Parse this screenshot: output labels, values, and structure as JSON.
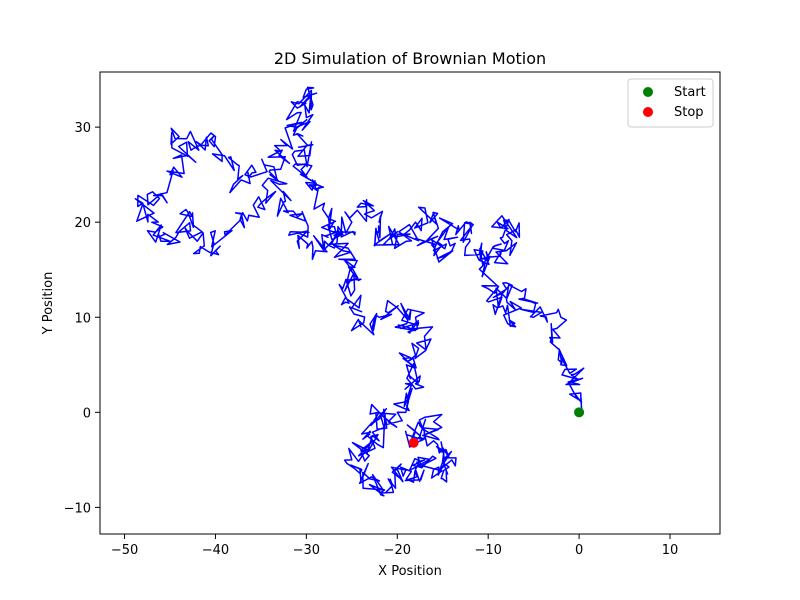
{
  "chart_data": {
    "type": "line",
    "title": "2D Simulation of Brownian Motion",
    "xlabel": "X Position",
    "ylabel": "Y Position",
    "xlim": [
      -52.7,
      15.5
    ],
    "ylim": [
      -12.8,
      35.8
    ],
    "xticks": [
      -50,
      -40,
      -30,
      -20,
      -10,
      0,
      10
    ],
    "yticks": [
      -10,
      0,
      10,
      20,
      30
    ],
    "xtick_labels": [
      "−50",
      "−40",
      "−30",
      "−20",
      "−10",
      "0",
      "10"
    ],
    "ytick_labels": [
      "−10",
      "0",
      "10",
      "20",
      "30"
    ],
    "grid": false,
    "legend_position": "top-right",
    "series": [
      {
        "type": "line",
        "color": "#0000ff",
        "waypoints": [
          [
            0,
            0
          ],
          [
            -0.5,
            2
          ],
          [
            -0.5,
            4
          ],
          [
            -2,
            5
          ],
          [
            -3,
            8
          ],
          [
            -2,
            10
          ],
          [
            -5,
            10
          ],
          [
            -6,
            12
          ],
          [
            -8,
            13
          ],
          [
            -9,
            11
          ],
          [
            -7,
            9
          ],
          [
            -8,
            12
          ],
          [
            -10,
            13
          ],
          [
            -10,
            16
          ],
          [
            -8,
            17
          ],
          [
            -9,
            20
          ],
          [
            -7,
            19
          ],
          [
            -8,
            17
          ],
          [
            -11,
            16
          ],
          [
            -12,
            18
          ],
          [
            -12,
            20
          ],
          [
            -15,
            19
          ],
          [
            -14,
            17
          ],
          [
            -16,
            17
          ],
          [
            -17,
            18
          ],
          [
            -16,
            21
          ],
          [
            -18,
            20
          ],
          [
            -19,
            18
          ],
          [
            -20,
            19
          ],
          [
            -22,
            18
          ],
          [
            -22,
            20
          ],
          [
            -24,
            22
          ],
          [
            -25,
            20
          ],
          [
            -26,
            19
          ],
          [
            -28,
            18
          ],
          [
            -27,
            20
          ],
          [
            -28,
            22
          ],
          [
            -29,
            24
          ],
          [
            -30,
            25
          ],
          [
            -31,
            26
          ],
          [
            -30,
            28
          ],
          [
            -31,
            30
          ],
          [
            -31,
            32
          ],
          [
            -30,
            34
          ],
          [
            -30,
            31
          ],
          [
            -32,
            29
          ],
          [
            -33,
            27
          ],
          [
            -34,
            25
          ],
          [
            -36,
            26
          ],
          [
            -38,
            24
          ],
          [
            -39,
            27
          ],
          [
            -40,
            29
          ],
          [
            -42,
            28
          ],
          [
            -44,
            29
          ],
          [
            -43,
            27
          ],
          [
            -45,
            25
          ],
          [
            -46,
            23
          ],
          [
            -48,
            22
          ],
          [
            -47,
            20
          ],
          [
            -46,
            18
          ],
          [
            -44,
            19
          ],
          [
            -43,
            21
          ],
          [
            -42,
            18
          ],
          [
            -40,
            17
          ],
          [
            -39,
            19
          ],
          [
            -37,
            21
          ],
          [
            -35,
            22
          ],
          [
            -33,
            24
          ],
          [
            -32,
            21
          ],
          [
            -30,
            20
          ],
          [
            -31,
            18
          ],
          [
            -29,
            17
          ],
          [
            -27,
            19
          ],
          [
            -26,
            17
          ],
          [
            -25,
            15
          ],
          [
            -24,
            14
          ],
          [
            -26,
            13
          ],
          [
            -25,
            11
          ],
          [
            -24,
            9
          ],
          [
            -22,
            10
          ],
          [
            -20,
            11
          ],
          [
            -19,
            9
          ],
          [
            -18,
            10
          ],
          [
            -17,
            8
          ],
          [
            -18,
            6
          ],
          [
            -19,
            5
          ],
          [
            -18,
            3
          ],
          [
            -19,
            2
          ],
          [
            -20,
            0
          ],
          [
            -21,
            -1
          ],
          [
            -22,
            0
          ],
          [
            -23,
            -2
          ],
          [
            -22,
            -3
          ],
          [
            -24,
            -4
          ],
          [
            -25,
            -5
          ],
          [
            -24,
            -6
          ],
          [
            -23,
            -7
          ],
          [
            -22,
            -8
          ],
          [
            -21,
            -7
          ],
          [
            -20,
            -6
          ],
          [
            -19,
            -7
          ],
          [
            -18,
            -6
          ],
          [
            -17,
            -5
          ],
          [
            -16,
            -6
          ],
          [
            -15,
            -7
          ],
          [
            -14,
            -5
          ],
          [
            -15,
            -4
          ],
          [
            -16,
            -3
          ],
          [
            -17,
            -2
          ],
          [
            -16,
            -1
          ],
          [
            -18,
            -2
          ],
          [
            -18.2,
            -3.2
          ]
        ]
      }
    ],
    "markers": [
      {
        "name": "Start",
        "x": 0.0,
        "y": 0.0,
        "color": "#008000"
      },
      {
        "name": "Stop",
        "x": -18.2,
        "y": -3.2,
        "color": "#ff0000"
      }
    ]
  }
}
